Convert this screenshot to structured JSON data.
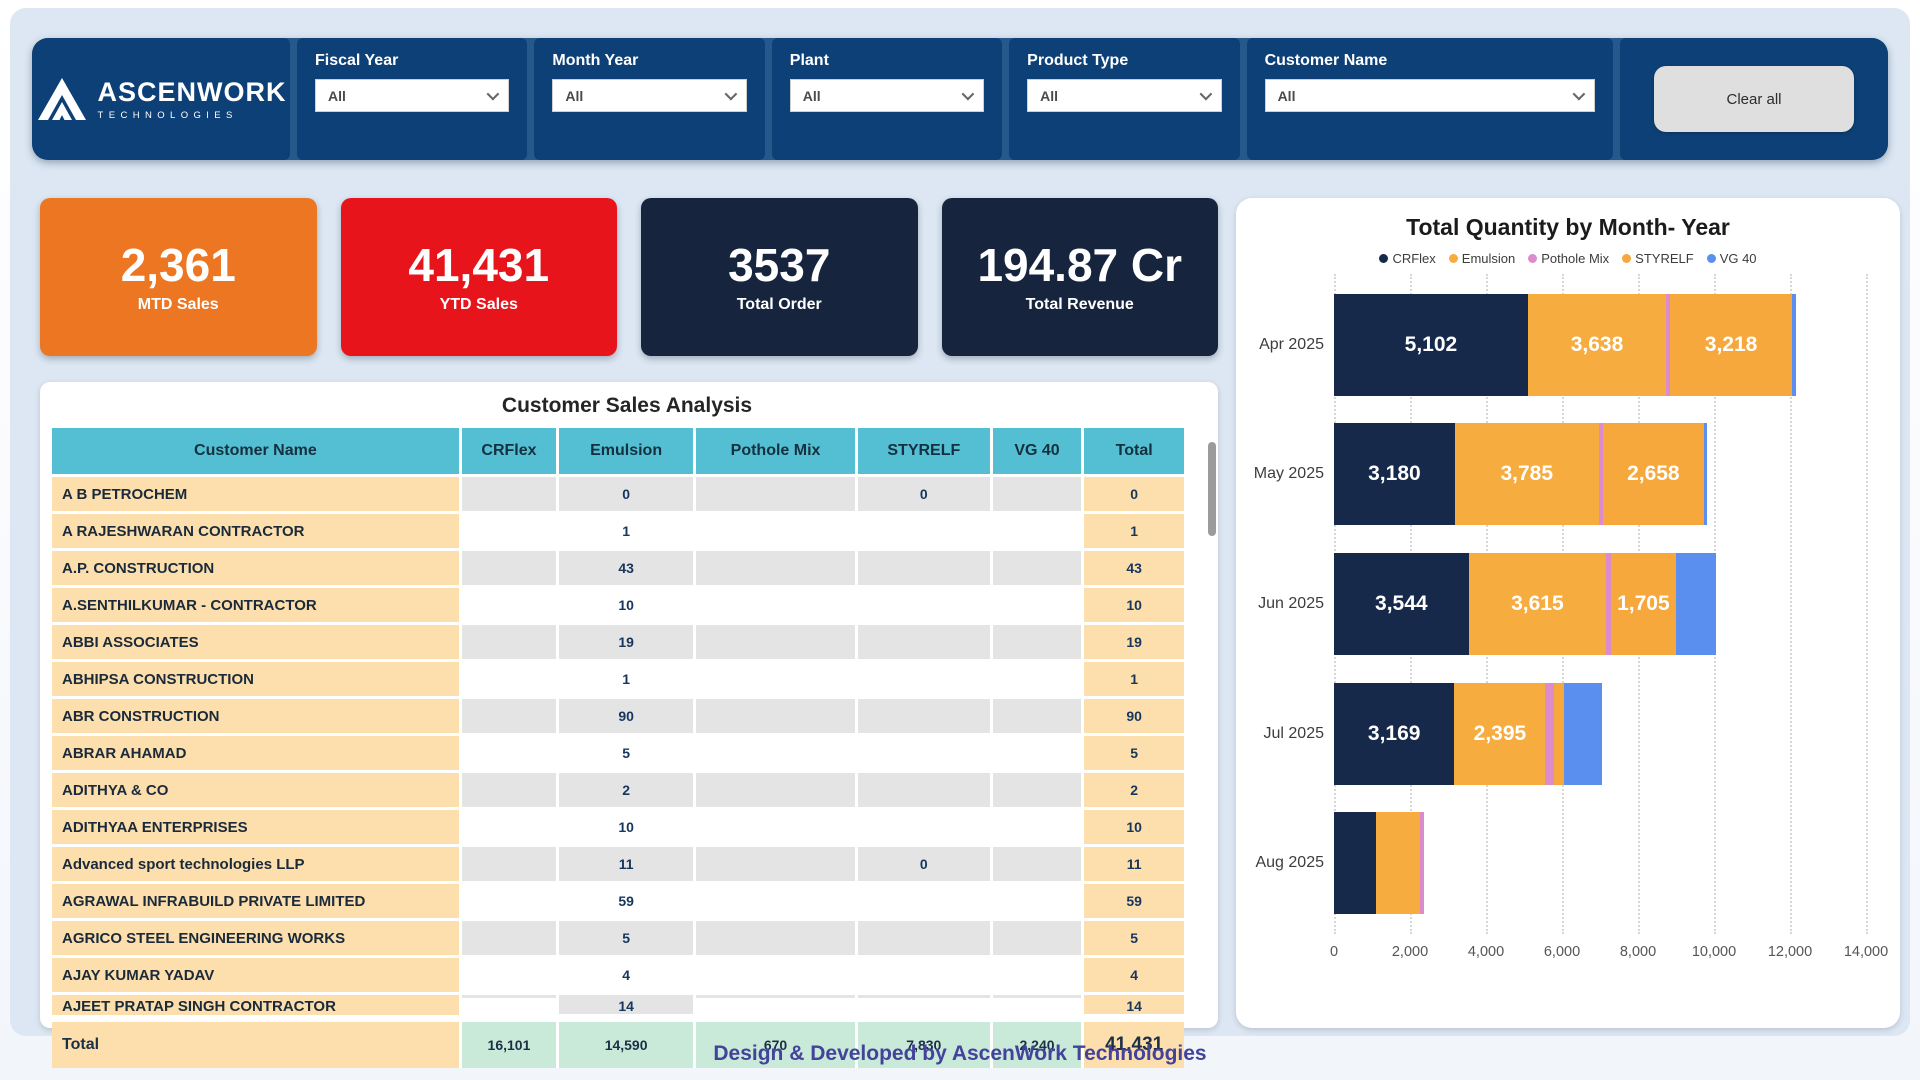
{
  "header": {
    "logo": {
      "brand": "ASCENWORK",
      "sub": "TECHNOLOGIES"
    },
    "filters": [
      {
        "label": "Fiscal Year",
        "value": "All"
      },
      {
        "label": "Month Year",
        "value": "All"
      },
      {
        "label": "Plant",
        "value": "All"
      },
      {
        "label": "Product Type",
        "value": "All"
      },
      {
        "label": "Customer Name",
        "value": "All"
      }
    ],
    "clear_all_label": "Clear all"
  },
  "kpis": [
    {
      "value": "2,361",
      "label": "MTD Sales",
      "color": "#ed7622"
    },
    {
      "value": "41,431",
      "label": "YTD Sales",
      "color": "#e8141c"
    },
    {
      "value": "3537",
      "label": "Total Order",
      "color": "#16243e"
    },
    {
      "value": "194.87 Cr",
      "label": "Total Revenue",
      "color": "#16243e"
    }
  ],
  "table": {
    "title": "Customer Sales Analysis",
    "columns": [
      "Customer Name",
      "CRFlex",
      "Emulsion",
      "Pothole Mix",
      "STYRELF",
      "VG 40",
      "Total"
    ],
    "rows": [
      {
        "name": "A B PETROCHEM",
        "values": [
          "",
          "0",
          "",
          "0",
          "",
          "0"
        ]
      },
      {
        "name": "A RAJESHWARAN CONTRACTOR",
        "values": [
          "",
          "1",
          "",
          "",
          "",
          "1"
        ]
      },
      {
        "name": "A.P. CONSTRUCTION",
        "values": [
          "",
          "43",
          "",
          "",
          "",
          "43"
        ]
      },
      {
        "name": "A.SENTHILKUMAR - CONTRACTOR",
        "values": [
          "",
          "10",
          "",
          "",
          "",
          "10"
        ]
      },
      {
        "name": "ABBI ASSOCIATES",
        "values": [
          "",
          "19",
          "",
          "",
          "",
          "19"
        ]
      },
      {
        "name": "ABHIPSA CONSTRUCTION",
        "values": [
          "",
          "1",
          "",
          "",
          "",
          "1"
        ]
      },
      {
        "name": "ABR CONSTRUCTION",
        "values": [
          "",
          "90",
          "",
          "",
          "",
          "90"
        ]
      },
      {
        "name": "ABRAR AHAMAD",
        "values": [
          "",
          "5",
          "",
          "",
          "",
          "5"
        ]
      },
      {
        "name": "ADITHYA & CO",
        "values": [
          "",
          "2",
          "",
          "",
          "",
          "2"
        ]
      },
      {
        "name": "ADITHYAA ENTERPRISES",
        "values": [
          "",
          "10",
          "",
          "",
          "",
          "10"
        ]
      },
      {
        "name": "Advanced sport technologies LLP",
        "values": [
          "",
          "11",
          "",
          "0",
          "",
          "11"
        ]
      },
      {
        "name": "AGRAWAL INFRABUILD PRIVATE LIMITED",
        "values": [
          "",
          "59",
          "",
          "",
          "",
          "59"
        ]
      },
      {
        "name": "AGRICO STEEL ENGINEERING WORKS",
        "values": [
          "",
          "5",
          "",
          "",
          "",
          "5"
        ]
      },
      {
        "name": "AJAY KUMAR YADAV",
        "values": [
          "",
          "4",
          "",
          "",
          "",
          "4"
        ]
      },
      {
        "name": "AJEET PRATAP SINGH CONTRACTOR",
        "values": [
          "",
          "14",
          "",
          "",
          "",
          "14"
        ]
      }
    ],
    "total_row": {
      "name": "Total",
      "values": [
        "16,101",
        "14,590",
        "670",
        "7,830",
        "2,240",
        "41,431"
      ]
    }
  },
  "chart_data": {
    "type": "bar",
    "orientation": "horizontal",
    "stacked": true,
    "title": "Total Quantity by Month- Year",
    "categories": [
      "Apr 2025",
      "May 2025",
      "Jun 2025",
      "Jul 2025",
      "Aug 2025"
    ],
    "series": [
      {
        "name": "CRFlex",
        "color": "#16294a",
        "values": [
          5102,
          3180,
          3544,
          3169,
          1106
        ],
        "labels": [
          "5,102",
          "3,180",
          "3,544",
          "3,169",
          null
        ]
      },
      {
        "name": "Emulsion",
        "color": "#f6ac3e",
        "values": [
          3638,
          3785,
          3615,
          2395,
          1157
        ],
        "labels": [
          "3,638",
          "3,785",
          "3,615",
          "2,395",
          null
        ]
      },
      {
        "name": "Pothole Mix",
        "color": "#dd8ccb",
        "values": [
          100,
          110,
          130,
          232,
          98
        ],
        "labels": [
          null,
          null,
          null,
          null,
          null
        ]
      },
      {
        "name": "STYRELF",
        "color": "#f6a83c",
        "values": [
          3218,
          2658,
          1705,
          249,
          0
        ],
        "labels": [
          "3,218",
          "2,658",
          "1,705",
          null,
          null
        ]
      },
      {
        "name": "VG 40",
        "color": "#5a8ff0",
        "values": [
          104,
          86,
          1050,
          1000,
          0
        ],
        "labels": [
          null,
          null,
          null,
          null,
          null
        ]
      }
    ],
    "xlabel": "",
    "ylabel": "",
    "xlim": [
      0,
      14000
    ],
    "x_ticks": [
      "0",
      "2,000",
      "4,000",
      "6,000",
      "8,000",
      "10,000",
      "12,000",
      "14,000"
    ],
    "grid": "dotted-vertical",
    "legend_position": "top"
  },
  "footer": {
    "credit": "Design & Developed by AscenWork Technologies"
  }
}
